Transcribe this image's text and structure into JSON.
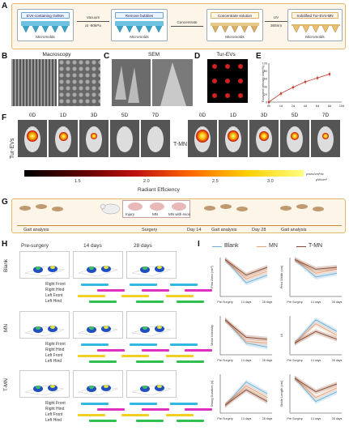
{
  "panels": {
    "A": "A",
    "B": "B",
    "C": "C",
    "D": "D",
    "E": "E",
    "F": "F",
    "G": "G",
    "H": "H",
    "I": "I"
  },
  "A": {
    "steps": [
      {
        "label": "EVs-containing GelMA",
        "foot": "Micromolds"
      },
      {
        "label": "Remove bubbles",
        "foot": "Micromolds"
      },
      {
        "label": "Concentrate solution",
        "foot": "Micromolds"
      },
      {
        "label": "Solidified Tur-EVs-MN",
        "foot": "Micromolds"
      }
    ],
    "arrows": [
      [
        "Vacuum",
        "at -80kPa"
      ],
      [
        "Concentrate",
        ""
      ],
      [
        "UV",
        "365nm"
      ]
    ]
  },
  "B": {
    "title": "Macroscopy"
  },
  "C": {
    "title": "SEM"
  },
  "D": {
    "title": "Tur-EVs"
  },
  "E": {
    "ylabel": "Exosome release rate(%)",
    "xticks": [
      "0h",
      "1d",
      "2d",
      "4d",
      "6d",
      "8d",
      "10d"
    ],
    "yticks": [
      "0",
      "20",
      "40",
      "60",
      "80",
      "100"
    ]
  },
  "F": {
    "group1": "Tur-EVs",
    "group2": "T-MN",
    "times": [
      "0D",
      "1D",
      "3D",
      "5D",
      "7D"
    ],
    "colorbar_title": "Radiant Efficiency",
    "colorbar_ticks": [
      "1.5",
      "2.0",
      "2.5",
      "3.0"
    ],
    "colorbar_unit1": "p/sec/cm²/sr",
    "colorbar_unit2": "μW/cm²"
  },
  "G": {
    "texts": [
      "Gait analysis",
      "Surgery",
      "Day 14",
      "Gait analysis",
      "Day 28",
      "Gait analysis"
    ],
    "insets": [
      "Injury",
      "MN",
      "MN with exos"
    ]
  },
  "H": {
    "cols": [
      "Pre-surgery",
      "14 days",
      "28 days"
    ],
    "rows": [
      "Blank",
      "MN",
      "T-MN"
    ],
    "gait_labels": [
      "Right Front",
      "Right Hind",
      "Left Front",
      "Left Hind"
    ]
  },
  "I": {
    "legend": [
      "Blank",
      "MN",
      "T-MN"
    ],
    "colors": [
      "#6fb0d8",
      "#e8a27a",
      "#8b4a30"
    ],
    "xticks": [
      "Pre-Surgery",
      "14 days",
      "28 days"
    ],
    "ylabels": [
      "Print Area (cm²)",
      "Print Width (cm)",
      "Mean Intensity",
      "LII",
      "Swing Duration (s)",
      "Stride Length (cm)"
    ]
  },
  "chart_data": [
    {
      "type": "line",
      "ylabel": "Exosome release rate(%)",
      "x": [
        "0h",
        "1d",
        "2d",
        "4d",
        "6d",
        "8d"
      ],
      "series": [
        {
          "values": [
            0,
            22,
            38,
            52,
            62,
            72
          ]
        }
      ],
      "ylim": [
        0,
        100
      ]
    },
    {
      "type": "line",
      "ylabel": "Print Area (cm²)",
      "x": [
        "Pre-Surgery",
        "14 days",
        "28 days"
      ],
      "series": [
        {
          "name": "Blank",
          "values": [
            0.95,
            0.35,
            0.55
          ]
        },
        {
          "name": "MN",
          "values": [
            0.95,
            0.45,
            0.65
          ]
        },
        {
          "name": "T-MN",
          "values": [
            0.95,
            0.55,
            0.75
          ]
        }
      ]
    },
    {
      "type": "line",
      "ylabel": "Print Width (cm)",
      "x": [
        "Pre-Surgery",
        "14 days",
        "28 days"
      ],
      "series": [
        {
          "name": "Blank",
          "values": [
            0.95,
            0.5,
            0.6
          ]
        },
        {
          "name": "MN",
          "values": [
            0.95,
            0.6,
            0.7
          ]
        },
        {
          "name": "T-MN",
          "values": [
            0.95,
            0.7,
            0.75
          ]
        }
      ]
    },
    {
      "type": "line",
      "ylabel": "Mean Intensity",
      "x": [
        "Pre-Surgery",
        "14 days",
        "28 days"
      ],
      "series": [
        {
          "name": "Blank",
          "values": [
            0.9,
            0.3,
            0.2
          ]
        },
        {
          "name": "MN",
          "values": [
            0.9,
            0.35,
            0.3
          ]
        },
        {
          "name": "T-MN",
          "values": [
            0.9,
            0.45,
            0.4
          ]
        }
      ]
    },
    {
      "type": "line",
      "ylabel": "LII",
      "x": [
        "Pre-Surgery",
        "14 days",
        "28 days"
      ],
      "series": [
        {
          "name": "Blank",
          "values": [
            0.3,
            0.9,
            0.6
          ]
        },
        {
          "name": "MN",
          "values": [
            0.3,
            0.8,
            0.5
          ]
        },
        {
          "name": "T-MN",
          "values": [
            0.3,
            0.6,
            0.4
          ]
        }
      ]
    },
    {
      "type": "line",
      "ylabel": "Swing Duration (s)",
      "x": [
        "Pre-Surgery",
        "14 days",
        "28 days"
      ],
      "series": [
        {
          "name": "Blank",
          "values": [
            0.2,
            0.8,
            0.5
          ]
        },
        {
          "name": "MN",
          "values": [
            0.2,
            0.7,
            0.4
          ]
        },
        {
          "name": "T-MN",
          "values": [
            0.2,
            0.6,
            0.3
          ]
        }
      ]
    },
    {
      "type": "line",
      "ylabel": "Stride Length (cm)",
      "x": [
        "Pre-Surgery",
        "14 days",
        "28 days"
      ],
      "series": [
        {
          "name": "Blank",
          "values": [
            0.9,
            0.3,
            0.55
          ]
        },
        {
          "name": "MN",
          "values": [
            0.9,
            0.4,
            0.65
          ]
        },
        {
          "name": "T-MN",
          "values": [
            0.9,
            0.55,
            0.75
          ]
        }
      ]
    }
  ]
}
